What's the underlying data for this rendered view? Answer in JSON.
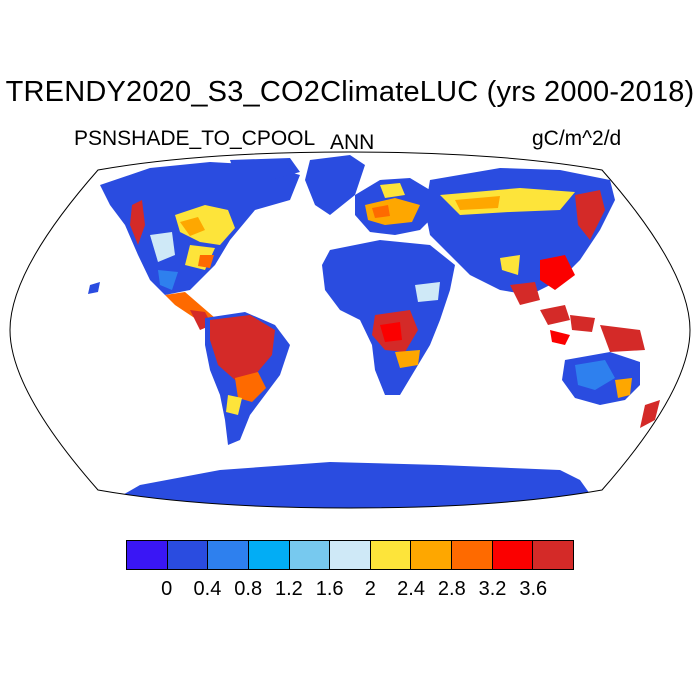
{
  "title": "TRENDY2020_S3_CO2ClimateLUC (yrs 2000-2018)",
  "variable": {
    "name": "PSNSHADE_TO_CPOOL",
    "subscript": "ANN"
  },
  "units": "gC/m^2/d",
  "map": {
    "projection": "Robinson"
  },
  "colorbar": {
    "colors": [
      "#3a16f5",
      "#2a4ce0",
      "#2e80ee",
      "#02adf5",
      "#77c9ef",
      "#cfe9f7",
      "#fde43a",
      "#fea700",
      "#fe6a00",
      "#fb0000",
      "#d42a28"
    ],
    "labels": [
      "0",
      "0.4",
      "0.8",
      "1.2",
      "1.6",
      "2",
      "2.4",
      "2.8",
      "3.2",
      "3.6"
    ]
  }
}
